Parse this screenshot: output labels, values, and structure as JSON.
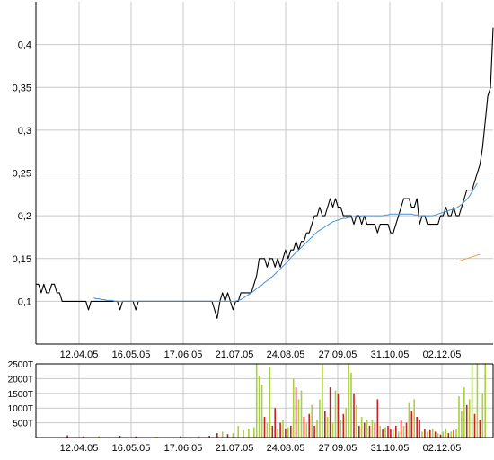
{
  "chart_data": [
    {
      "type": "line",
      "grid": true,
      "x_tick_labels": [
        "12.04.05",
        "16.05.05",
        "17.06.05",
        "21.07.05",
        "24.08.05",
        "27.09.05",
        "31.10.05",
        "02.12.05"
      ],
      "y_tick_labels": [
        "0,1",
        "0,15",
        "0,2",
        "0,25",
        "0,3",
        "0,35",
        "0,4"
      ],
      "ylim": [
        0.05,
        0.45
      ],
      "series": [
        {
          "color": "#000000",
          "values": [
            0.12,
            0.12,
            0.11,
            0.12,
            0.11,
            0.11,
            0.12,
            0.12,
            0.11,
            0.11,
            0.1,
            0.1,
            0.1,
            0.1,
            0.1,
            0.1,
            0.1,
            0.1,
            0.1,
            0.1,
            0.09,
            0.1,
            0.1,
            0.1,
            0.1,
            0.1,
            0.1,
            0.1,
            0.1,
            0.1,
            0.1,
            0.1,
            0.09,
            0.1,
            0.1,
            0.1,
            0.1,
            0.1,
            0.09,
            0.1,
            0.1,
            0.1,
            0.1,
            0.1,
            0.1,
            0.1,
            0.1,
            0.1,
            0.1,
            0.1,
            0.1,
            0.1,
            0.1,
            0.1,
            0.1,
            0.1,
            0.1,
            0.1,
            0.1,
            0.1,
            0.1,
            0.1,
            0.1,
            0.1,
            0.1,
            0.1,
            0.1,
            0.1,
            0.09,
            0.08,
            0.1,
            0.11,
            0.1,
            0.11,
            0.1,
            0.09,
            0.1,
            0.1,
            0.11,
            0.11,
            0.11,
            0.11,
            0.11,
            0.12,
            0.13,
            0.15,
            0.15,
            0.15,
            0.14,
            0.15,
            0.15,
            0.14,
            0.15,
            0.14,
            0.15,
            0.16,
            0.15,
            0.16,
            0.16,
            0.17,
            0.16,
            0.17,
            0.17,
            0.18,
            0.18,
            0.19,
            0.2,
            0.2,
            0.21,
            0.2,
            0.2,
            0.21,
            0.22,
            0.21,
            0.22,
            0.21,
            0.21,
            0.2,
            0.2,
            0.2,
            0.2,
            0.19,
            0.2,
            0.2,
            0.19,
            0.2,
            0.19,
            0.19,
            0.19,
            0.19,
            0.18,
            0.19,
            0.19,
            0.19,
            0.19,
            0.18,
            0.18,
            0.19,
            0.2,
            0.21,
            0.22,
            0.22,
            0.22,
            0.21,
            0.21,
            0.22,
            0.19,
            0.2,
            0.2,
            0.19,
            0.19,
            0.19,
            0.19,
            0.19,
            0.2,
            0.2,
            0.21,
            0.2,
            0.2,
            0.21,
            0.2,
            0.2,
            0.21,
            0.22,
            0.23,
            0.23,
            0.23,
            0.24,
            0.25,
            0.26,
            0.28,
            0.31,
            0.34,
            0.35,
            0.42
          ]
        },
        {
          "color": "#4a90d9",
          "values": [
            null,
            null,
            null,
            null,
            null,
            null,
            null,
            null,
            null,
            null,
            null,
            null,
            null,
            null,
            null,
            null,
            null,
            null,
            null,
            null,
            null,
            null,
            0.104,
            0.103,
            0.103,
            0.102,
            0.102,
            0.101,
            0.101,
            0.101,
            0.1,
            0.1,
            0.1,
            0.1,
            0.1,
            0.1,
            0.1,
            0.1,
            0.1,
            0.1,
            0.1,
            0.1,
            0.1,
            0.1,
            0.1,
            0.1,
            0.1,
            0.1,
            0.1,
            0.1,
            0.1,
            0.1,
            0.1,
            0.1,
            0.1,
            0.1,
            0.1,
            0.1,
            0.1,
            0.1,
            0.1,
            0.1,
            0.1,
            0.1,
            0.1,
            0.1,
            0.1,
            0.1,
            0.1,
            0.1,
            0.1,
            0.1,
            0.1,
            0.1,
            0.1,
            0.1,
            0.1,
            0.101,
            0.102,
            0.104,
            0.106,
            0.108,
            0.11,
            0.112,
            0.115,
            0.117,
            0.119,
            0.122,
            0.124,
            0.127,
            0.129,
            0.132,
            0.135,
            0.138,
            0.141,
            0.144,
            0.147,
            0.151,
            0.154,
            0.157,
            0.16,
            0.163,
            0.166,
            0.169,
            0.172,
            0.175,
            0.178,
            0.181,
            0.183,
            0.185,
            0.187,
            0.189,
            0.191,
            0.193,
            0.194,
            0.195,
            0.196,
            0.197,
            0.197,
            0.198,
            0.198,
            0.199,
            0.199,
            0.199,
            0.2,
            0.2,
            0.2,
            0.2,
            0.2,
            0.2,
            0.2,
            0.2,
            0.2,
            0.201,
            0.201,
            0.202,
            0.202,
            0.202,
            0.202,
            0.202,
            0.202,
            0.202,
            0.202,
            0.202,
            0.201,
            0.201,
            0.2,
            0.2,
            0.2,
            0.2,
            0.2,
            0.2,
            0.201,
            0.202,
            0.203,
            0.204,
            0.205,
            0.206,
            0.207,
            0.208,
            0.209,
            0.211,
            0.213,
            0.216,
            0.219,
            0.223,
            0.228,
            0.233,
            0.238
          ]
        },
        {
          "color": "#f0a030",
          "values": [
            null,
            null,
            null,
            null,
            null,
            null,
            null,
            null,
            null,
            null,
            null,
            null,
            null,
            null,
            null,
            null,
            null,
            null,
            null,
            null,
            null,
            null,
            null,
            null,
            null,
            null,
            null,
            null,
            null,
            null,
            null,
            null,
            null,
            null,
            null,
            null,
            null,
            null,
            null,
            null,
            null,
            null,
            null,
            null,
            null,
            null,
            null,
            null,
            null,
            null,
            null,
            null,
            null,
            null,
            null,
            null,
            null,
            null,
            null,
            null,
            null,
            null,
            null,
            null,
            null,
            null,
            null,
            null,
            null,
            null,
            null,
            null,
            null,
            null,
            null,
            null,
            null,
            null,
            null,
            null,
            null,
            null,
            null,
            null,
            null,
            null,
            null,
            null,
            null,
            null,
            null,
            null,
            null,
            null,
            null,
            null,
            null,
            null,
            null,
            null,
            null,
            null,
            null,
            null,
            null,
            null,
            null,
            null,
            null,
            null,
            null,
            null,
            null,
            null,
            null,
            null,
            null,
            null,
            null,
            null,
            null,
            null,
            null,
            null,
            null,
            null,
            null,
            null,
            null,
            null,
            null,
            null,
            null,
            null,
            null,
            null,
            null,
            null,
            null,
            null,
            null,
            null,
            null,
            null,
            null,
            null,
            null,
            null,
            null,
            null,
            null,
            null,
            null,
            null,
            null,
            null,
            null,
            null,
            null,
            null,
            null,
            0.147,
            0.148,
            0.149,
            0.15,
            0.151,
            0.152,
            0.153,
            0.154,
            0.155
          ]
        }
      ]
    },
    {
      "type": "bar",
      "grid": true,
      "x_tick_labels": [
        "12.04.05",
        "16.05.05",
        "17.06.05",
        "21.07.05",
        "24.08.05",
        "27.09.05",
        "31.10.05",
        "02.12.05"
      ],
      "y_tick_labels": [
        "500T",
        "1000T",
        "1500T",
        "2000T",
        "2500T"
      ],
      "ylim": [
        0,
        2500
      ],
      "up_color": "#a8d040",
      "down_color": "#cc2020",
      "bars": [
        {
          "i": 12,
          "v": 80,
          "d": "down"
        },
        {
          "i": 18,
          "v": 40,
          "d": "down"
        },
        {
          "i": 24,
          "v": 50,
          "d": "up"
        },
        {
          "i": 32,
          "v": 60,
          "d": "down"
        },
        {
          "i": 38,
          "v": 40,
          "d": "down"
        },
        {
          "i": 46,
          "v": 30,
          "d": "up"
        },
        {
          "i": 55,
          "v": 40,
          "d": "down"
        },
        {
          "i": 62,
          "v": 50,
          "d": "up"
        },
        {
          "i": 66,
          "v": 60,
          "d": "down"
        },
        {
          "i": 69,
          "v": 150,
          "d": "down"
        },
        {
          "i": 71,
          "v": 200,
          "d": "up"
        },
        {
          "i": 73,
          "v": 120,
          "d": "down"
        },
        {
          "i": 75,
          "v": 150,
          "d": "up"
        },
        {
          "i": 77,
          "v": 400,
          "d": "up"
        },
        {
          "i": 79,
          "v": 250,
          "d": "up"
        },
        {
          "i": 81,
          "v": 300,
          "d": "up"
        },
        {
          "i": 83,
          "v": 350,
          "d": "up"
        },
        {
          "i": 84,
          "v": 2500,
          "d": "up"
        },
        {
          "i": 85,
          "v": 2100,
          "d": "up"
        },
        {
          "i": 86,
          "v": 1800,
          "d": "up"
        },
        {
          "i": 87,
          "v": 700,
          "d": "down"
        },
        {
          "i": 88,
          "v": 500,
          "d": "up"
        },
        {
          "i": 89,
          "v": 2400,
          "d": "up"
        },
        {
          "i": 90,
          "v": 400,
          "d": "down"
        },
        {
          "i": 91,
          "v": 1000,
          "d": "down"
        },
        {
          "i": 92,
          "v": 300,
          "d": "up"
        },
        {
          "i": 93,
          "v": 500,
          "d": "down"
        },
        {
          "i": 94,
          "v": 600,
          "d": "up"
        },
        {
          "i": 95,
          "v": 300,
          "d": "down"
        },
        {
          "i": 96,
          "v": 350,
          "d": "up"
        },
        {
          "i": 97,
          "v": 400,
          "d": "down"
        },
        {
          "i": 98,
          "v": 2000,
          "d": "up"
        },
        {
          "i": 99,
          "v": 1700,
          "d": "down"
        },
        {
          "i": 100,
          "v": 1300,
          "d": "up"
        },
        {
          "i": 101,
          "v": 1600,
          "d": "up"
        },
        {
          "i": 102,
          "v": 700,
          "d": "down"
        },
        {
          "i": 103,
          "v": 500,
          "d": "up"
        },
        {
          "i": 104,
          "v": 800,
          "d": "down"
        },
        {
          "i": 105,
          "v": 1100,
          "d": "up"
        },
        {
          "i": 106,
          "v": 400,
          "d": "down"
        },
        {
          "i": 107,
          "v": 600,
          "d": "up"
        },
        {
          "i": 108,
          "v": 1300,
          "d": "up"
        },
        {
          "i": 109,
          "v": 2500,
          "d": "up"
        },
        {
          "i": 110,
          "v": 900,
          "d": "down"
        },
        {
          "i": 111,
          "v": 700,
          "d": "up"
        },
        {
          "i": 112,
          "v": 1700,
          "d": "down"
        },
        {
          "i": 113,
          "v": 500,
          "d": "up"
        },
        {
          "i": 114,
          "v": 1600,
          "d": "up"
        },
        {
          "i": 115,
          "v": 1500,
          "d": "down"
        },
        {
          "i": 116,
          "v": 600,
          "d": "up"
        },
        {
          "i": 117,
          "v": 800,
          "d": "down"
        },
        {
          "i": 118,
          "v": 1000,
          "d": "up"
        },
        {
          "i": 119,
          "v": 2500,
          "d": "up"
        },
        {
          "i": 120,
          "v": 2200,
          "d": "up"
        },
        {
          "i": 121,
          "v": 1500,
          "d": "down"
        },
        {
          "i": 122,
          "v": 1100,
          "d": "up"
        },
        {
          "i": 123,
          "v": 400,
          "d": "down"
        },
        {
          "i": 124,
          "v": 700,
          "d": "up"
        },
        {
          "i": 125,
          "v": 500,
          "d": "down"
        },
        {
          "i": 126,
          "v": 600,
          "d": "up"
        },
        {
          "i": 127,
          "v": 400,
          "d": "down"
        },
        {
          "i": 128,
          "v": 600,
          "d": "up"
        },
        {
          "i": 129,
          "v": 500,
          "d": "down"
        },
        {
          "i": 130,
          "v": 1300,
          "d": "down"
        },
        {
          "i": 131,
          "v": 400,
          "d": "up"
        },
        {
          "i": 132,
          "v": 300,
          "d": "down"
        },
        {
          "i": 133,
          "v": 350,
          "d": "up"
        },
        {
          "i": 134,
          "v": 400,
          "d": "down"
        },
        {
          "i": 135,
          "v": 300,
          "d": "down"
        },
        {
          "i": 136,
          "v": 250,
          "d": "up"
        },
        {
          "i": 137,
          "v": 400,
          "d": "down"
        },
        {
          "i": 138,
          "v": 200,
          "d": "up"
        },
        {
          "i": 139,
          "v": 600,
          "d": "down"
        },
        {
          "i": 140,
          "v": 400,
          "d": "up"
        },
        {
          "i": 141,
          "v": 500,
          "d": "down"
        },
        {
          "i": 142,
          "v": 1200,
          "d": "up"
        },
        {
          "i": 143,
          "v": 900,
          "d": "down"
        },
        {
          "i": 144,
          "v": 1300,
          "d": "up"
        },
        {
          "i": 145,
          "v": 700,
          "d": "down"
        },
        {
          "i": 146,
          "v": 600,
          "d": "down"
        },
        {
          "i": 147,
          "v": 200,
          "d": "up"
        },
        {
          "i": 148,
          "v": 300,
          "d": "down"
        },
        {
          "i": 149,
          "v": 200,
          "d": "up"
        },
        {
          "i": 150,
          "v": 250,
          "d": "down"
        },
        {
          "i": 151,
          "v": 300,
          "d": "up"
        },
        {
          "i": 152,
          "v": 200,
          "d": "down"
        },
        {
          "i": 153,
          "v": 150,
          "d": "up"
        },
        {
          "i": 154,
          "v": 100,
          "d": "down"
        },
        {
          "i": 155,
          "v": 200,
          "d": "up"
        },
        {
          "i": 156,
          "v": 300,
          "d": "up"
        },
        {
          "i": 157,
          "v": 150,
          "d": "down"
        },
        {
          "i": 158,
          "v": 200,
          "d": "up"
        },
        {
          "i": 159,
          "v": 250,
          "d": "down"
        },
        {
          "i": 160,
          "v": 300,
          "d": "up"
        },
        {
          "i": 161,
          "v": 1400,
          "d": "up"
        },
        {
          "i": 162,
          "v": 900,
          "d": "up"
        },
        {
          "i": 163,
          "v": 1700,
          "d": "up"
        },
        {
          "i": 164,
          "v": 1100,
          "d": "down"
        },
        {
          "i": 165,
          "v": 1300,
          "d": "up"
        },
        {
          "i": 166,
          "v": 2500,
          "d": "up"
        },
        {
          "i": 167,
          "v": 800,
          "d": "down"
        },
        {
          "i": 168,
          "v": 2500,
          "d": "up"
        },
        {
          "i": 169,
          "v": 600,
          "d": "down"
        },
        {
          "i": 170,
          "v": 1500,
          "d": "up"
        },
        {
          "i": 171,
          "v": 2500,
          "d": "up"
        }
      ]
    }
  ]
}
